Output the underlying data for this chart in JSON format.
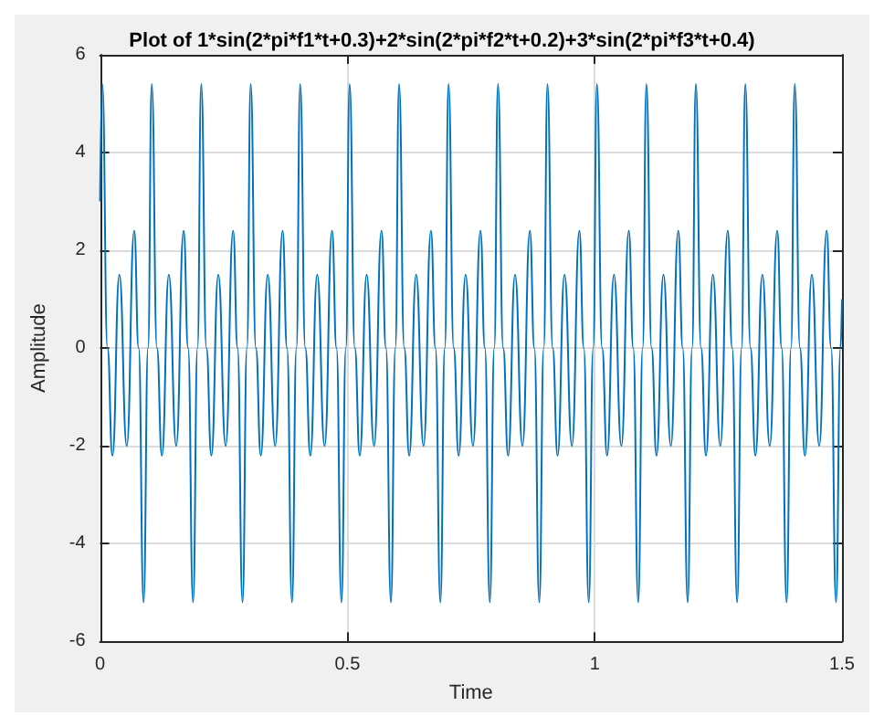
{
  "chart_data": {
    "type": "line",
    "title": "Plot of 1*sin(2*pi*f1*t+0.3)+2*sin(2*pi*f2*t+0.2)+3*sin(2*pi*f3*t+0.4)",
    "xlabel": "Time",
    "ylabel": "Amplitude",
    "xlim": [
      0,
      1.5
    ],
    "xticks": [
      0,
      0.5,
      1,
      1.5
    ],
    "ylim": [
      -6,
      6
    ],
    "yticks": [
      -6,
      -4,
      -2,
      0,
      2,
      4,
      6
    ],
    "grid": true,
    "marker": "none",
    "line_style": "solid",
    "series": [
      {
        "color": "#0072bd",
        "x": [
          0,
          0.0045,
          0.015,
          0.025,
          0.039,
          0.054,
          0.069,
          0.078,
          0.088,
          0.097,
          0.1045,
          0.115,
          0.125,
          0.139,
          0.154,
          0.169,
          0.178,
          0.188,
          0.197,
          0.2045,
          0.215,
          0.225,
          0.239,
          0.254,
          0.269,
          0.278,
          0.288,
          0.297,
          0.3045,
          0.315,
          0.325,
          0.339,
          0.354,
          0.369,
          0.378,
          0.388,
          0.397,
          0.4045,
          0.415,
          0.425,
          0.439,
          0.454,
          0.469,
          0.478,
          0.488,
          0.497,
          0.5045,
          0.515,
          0.525,
          0.539,
          0.554,
          0.569,
          0.578,
          0.588,
          0.597,
          0.6045,
          0.615,
          0.625,
          0.639,
          0.654,
          0.669,
          0.678,
          0.688,
          0.697,
          0.7045,
          0.715,
          0.725,
          0.739,
          0.754,
          0.769,
          0.778,
          0.788,
          0.797,
          0.8045,
          0.815,
          0.825,
          0.839,
          0.854,
          0.869,
          0.878,
          0.888,
          0.897,
          0.9045,
          0.915,
          0.925,
          0.939,
          0.954,
          0.969,
          0.978,
          0.988,
          0.997,
          1.0045,
          1.015,
          1.025,
          1.039,
          1.054,
          1.069,
          1.078,
          1.088,
          1.097,
          1.1045,
          1.115,
          1.125,
          1.139,
          1.154,
          1.169,
          1.178,
          1.188,
          1.197,
          1.2045,
          1.215,
          1.225,
          1.239,
          1.254,
          1.269,
          1.278,
          1.288,
          1.297,
          1.3045,
          1.315,
          1.325,
          1.339,
          1.354,
          1.369,
          1.378,
          1.388,
          1.397,
          1.4045,
          1.415,
          1.425,
          1.439,
          1.454,
          1.469,
          1.478,
          1.488,
          1.497,
          1.5
        ],
        "values": [
          3,
          5.4,
          0,
          -2.2,
          1.5,
          -2,
          2.4,
          0,
          -5.2,
          0,
          5.4,
          0,
          -2.2,
          1.5,
          -2,
          2.4,
          0,
          -5.2,
          0,
          5.4,
          0,
          -2.2,
          1.5,
          -2,
          2.4,
          0,
          -5.2,
          0,
          5.4,
          0,
          -2.2,
          1.5,
          -2,
          2.4,
          0,
          -5.2,
          0,
          5.4,
          0,
          -2.2,
          1.5,
          -2,
          2.4,
          0,
          -5.2,
          0,
          5.4,
          0,
          -2.2,
          1.5,
          -2,
          2.4,
          0,
          -5.2,
          0,
          5.4,
          0,
          -2.2,
          1.5,
          -2,
          2.4,
          0,
          -5.2,
          0,
          5.4,
          0,
          -2.2,
          1.5,
          -2,
          2.4,
          0,
          -5.2,
          0,
          5.4,
          0,
          -2.2,
          1.5,
          -2,
          2.4,
          0,
          -5.2,
          0,
          5.4,
          0,
          -2.2,
          1.5,
          -2,
          2.4,
          0,
          -5.2,
          0,
          5.4,
          0,
          -2.2,
          1.5,
          -2,
          2.4,
          0,
          -5.2,
          0,
          5.4,
          0,
          -2.2,
          1.5,
          -2,
          2.4,
          0,
          -5.2,
          0,
          5.4,
          0,
          -2.2,
          1.5,
          -2,
          2.4,
          0,
          -5.2,
          0,
          5.4,
          0,
          -2.2,
          1.5,
          -2,
          2.4,
          0,
          -5.2,
          0,
          5.4,
          0,
          -2.2,
          1.5,
          -2,
          2.4,
          0,
          -5.2,
          0,
          1
        ]
      }
    ]
  }
}
